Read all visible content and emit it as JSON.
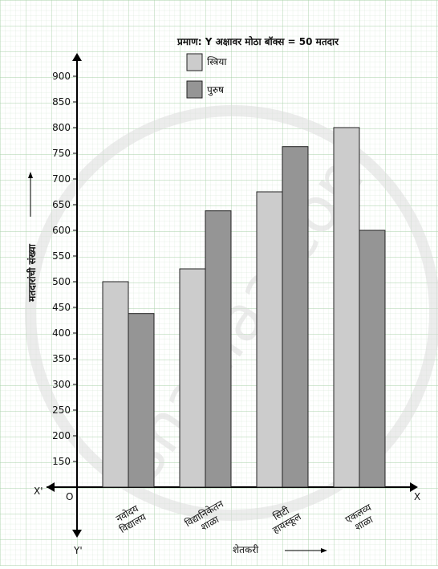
{
  "chart_data": {
    "type": "bar",
    "scale_note": "प्रमाण: Y अक्षावर मोठा बॉक्स = 50 मतदार",
    "categories": [
      [
        "नवोदय",
        "विद्यालय"
      ],
      [
        "विद्यानिकेतन",
        "शाळा"
      ],
      [
        "सिटी",
        "हायस्कूल"
      ],
      [
        "एकलव्य",
        "शाळा"
      ]
    ],
    "series": [
      {
        "name": "स्त्रिया",
        "values": [
          500,
          525,
          675,
          800
        ],
        "color": "#cccccc"
      },
      {
        "name": "पुरुष",
        "values": [
          438,
          638,
          763,
          600
        ],
        "color": "#959595"
      }
    ],
    "yticks": [
      150,
      200,
      250,
      300,
      350,
      400,
      450,
      500,
      550,
      600,
      650,
      700,
      750,
      800,
      850,
      900
    ],
    "ylim": [
      100,
      925
    ],
    "ylabel": "मतदारांची संख्या",
    "xlabel": "शेतकरी",
    "axis_labels": {
      "origin": "O",
      "x_pos": "X",
      "x_neg": "X'",
      "y_neg": "Y'"
    },
    "legend_position": "top-center",
    "watermark": "shaalaa.com",
    "grid": true
  }
}
